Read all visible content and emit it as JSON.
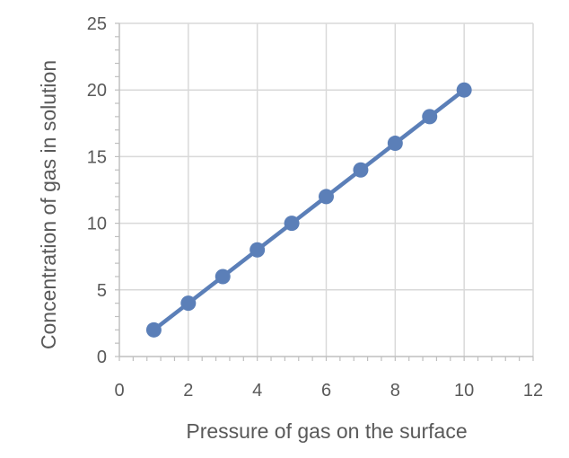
{
  "chart_data": {
    "type": "line",
    "title": "",
    "xlabel": "Pressure of gas on the surface",
    "ylabel": "Concentration of gas in solution",
    "xlim": [
      0,
      12
    ],
    "ylim": [
      0,
      25
    ],
    "xticks": [
      0,
      2,
      4,
      6,
      8,
      10,
      12
    ],
    "yticks": [
      0,
      5,
      10,
      15,
      20,
      25
    ],
    "grid": true,
    "legend": "none",
    "series": [
      {
        "x": [
          1,
          2,
          3,
          4,
          5,
          6,
          7,
          8,
          9,
          10
        ],
        "y": [
          2,
          4,
          6,
          8,
          10,
          12,
          14,
          16,
          18,
          20
        ],
        "color": "#5b7fb8",
        "marker": "circle"
      }
    ],
    "colors": {
      "grid": "#d9d9d9",
      "axis": "#bfbfbf",
      "text": "#595959"
    }
  }
}
